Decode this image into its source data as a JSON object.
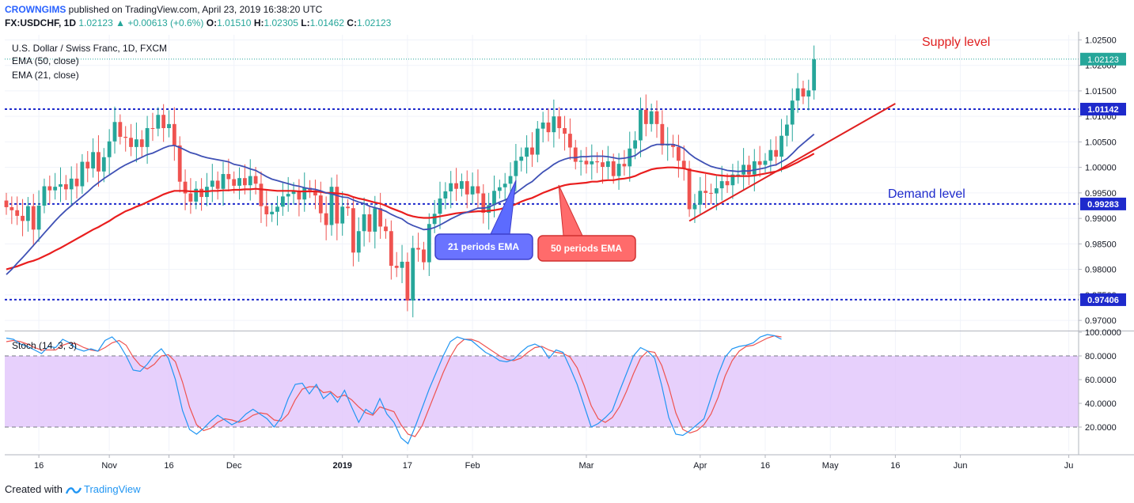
{
  "header": {
    "author": "CROWNGIMS",
    "published": "published on TradingView.com, April 23, 2019 16:38:20 UTC",
    "symbol": "FX:USDCHF, 1D",
    "last": "1.02123",
    "change": "+0.00613 (+0.6%)",
    "o_label": "O:",
    "o": "1.01510",
    "h_label": "H:",
    "h": "1.02305",
    "l_label": "L:",
    "l": "1.01462",
    "c_label": "C:",
    "c": "1.02123"
  },
  "legend": {
    "title": "U.S. Dollar / Swiss Franc, 1D, FXCM",
    "ema50": "EMA (50, close)",
    "ema21": "EMA (21, close)",
    "stoch": "Stoch (14, 3, 3)"
  },
  "annotations": {
    "supply": "Supply level",
    "demand": "Demand level",
    "ema21_callout": "21 periods EMA",
    "ema50_callout": "50 periods EMA"
  },
  "footer": {
    "created_with": "Created with",
    "brand": "TradingView"
  },
  "colors": {
    "up": "#26a69a",
    "down": "#ef5350",
    "ema21": "#3f51b5",
    "ema50": "#e91e1e",
    "level": "#1e2acc",
    "stoch_k": "#2196f3",
    "stoch_d": "#ef5350",
    "stoch_band": "#e1c4fb"
  },
  "chart_data": [
    {
      "type": "candlestick",
      "title": "U.S. Dollar / Swiss Franc, 1D, FXCM",
      "x_ticks": [
        "16",
        "Nov",
        "16",
        "Dec",
        "2019",
        "17",
        "Feb",
        "Mar",
        "Apr",
        "16",
        "May",
        "16",
        "Jun",
        "Ju"
      ],
      "ylim": [
        0.968,
        1.026
      ],
      "y_ticks": [
        "1.02500",
        "1.02000",
        "1.01500",
        "1.01000",
        "1.00500",
        "1.00000",
        "0.99500",
        "0.99000",
        "0.98500",
        "0.98000",
        "0.97500",
        "0.97000"
      ],
      "levels": [
        {
          "value": 1.01142,
          "label": "1.01142"
        },
        {
          "value": 0.99283,
          "label": "0.99283"
        },
        {
          "value": 0.97406,
          "label": "0.97406"
        }
      ],
      "current_price": {
        "value": 1.02123,
        "label": "1.02123"
      },
      "close": [
        0.9922,
        0.9916,
        0.9905,
        0.9895,
        0.9924,
        0.9878,
        0.9925,
        0.9963,
        0.9955,
        0.9962,
        0.9967,
        0.9957,
        0.9978,
        0.9963,
        1.0011,
        0.9998,
        1.003,
        0.9992,
        1.002,
        1.0051,
        1.0089,
        1.006,
        1.0058,
        1.004,
        1.0055,
        1.004,
        1.0077,
        1.0076,
        1.0103,
        1.0077,
        1.0085,
        1.0043,
        0.9972,
        0.9949,
        0.9933,
        0.9958,
        0.9942,
        0.9962,
        0.9974,
        0.9958,
        0.9987,
        0.9977,
        0.9964,
        0.9979,
        0.9965,
        0.9983,
        0.9968,
        0.9924,
        0.9908,
        0.9913,
        0.9923,
        0.9943,
        0.9948,
        0.9953,
        0.9937,
        0.996,
        0.9955,
        0.9945,
        0.991,
        0.9887,
        0.9962,
        0.989,
        0.9923,
        0.992,
        0.9833,
        0.9875,
        0.9908,
        0.9874,
        0.992,
        0.9884,
        0.9875,
        0.9807,
        0.9803,
        0.9815,
        0.9739,
        0.9842,
        0.9839,
        0.9814,
        0.9889,
        0.9909,
        0.9939,
        0.9953,
        0.9969,
        0.9958,
        0.9973,
        0.9947,
        0.9963,
        0.9949,
        0.9911,
        0.9926,
        0.9954,
        0.9961,
        0.9968,
        0.9983,
        1.0013,
        1.0021,
        1.0039,
        1.0025,
        1.0076,
        1.0088,
        1.0069,
        1.01,
        1.0077,
        1.0066,
        1.0039,
        1.0011,
        1.0013,
        1.0006,
        1.0012,
        1.001,
        1.0001,
        1.0012,
        0.9983,
        1.0007,
        1.0002,
        1.0037,
        1.0053,
        1.0113,
        1.0085,
        1.011,
        1.0085,
        1.0043,
        1.0046,
        1.004,
        1.0013,
        0.9998,
        0.9918,
        0.9927,
        0.9954,
        0.995,
        0.9949,
        0.9959,
        0.9973,
        0.9965,
        0.9986,
        0.9986,
        1.0005,
        0.9986,
        1.0012,
        1.0005,
        1.0013,
        1.0034,
        1.0021,
        1.0062,
        1.0084,
        1.0131,
        1.0155,
        1.0139,
        1.0151,
        1.0212
      ],
      "open": [
        0.9935,
        0.9922,
        0.9916,
        0.9905,
        0.9895,
        0.9924,
        0.9878,
        0.9925,
        0.9963,
        0.9955,
        0.9962,
        0.9967,
        0.9957,
        0.9978,
        0.9963,
        1.0011,
        0.9998,
        1.003,
        0.9992,
        1.002,
        1.0051,
        1.0089,
        1.006,
        1.0058,
        1.004,
        1.0055,
        1.004,
        1.0077,
        1.0076,
        1.0103,
        1.0077,
        1.0085,
        1.0043,
        0.9972,
        0.9949,
        0.9933,
        0.9958,
        0.9942,
        0.9962,
        0.9974,
        0.9958,
        0.9987,
        0.9977,
        0.9964,
        0.9979,
        0.9965,
        0.9983,
        0.9968,
        0.9924,
        0.9908,
        0.9913,
        0.9923,
        0.9943,
        0.9948,
        0.9953,
        0.9937,
        0.996,
        0.9955,
        0.9945,
        0.991,
        0.9887,
        0.9962,
        0.989,
        0.9923,
        0.992,
        0.9833,
        0.9875,
        0.9908,
        0.9874,
        0.992,
        0.9884,
        0.9875,
        0.9807,
        0.9803,
        0.9815,
        0.9739,
        0.9842,
        0.9839,
        0.9814,
        0.9889,
        0.9909,
        0.9939,
        0.9953,
        0.9969,
        0.9958,
        0.9973,
        0.9947,
        0.9963,
        0.9949,
        0.9911,
        0.9926,
        0.9954,
        0.9961,
        0.9968,
        0.9983,
        1.0013,
        1.0021,
        1.0039,
        1.0025,
        1.0076,
        1.0088,
        1.0069,
        1.01,
        1.0077,
        1.0066,
        1.0039,
        1.0011,
        1.0013,
        1.0006,
        1.0012,
        1.001,
        1.0001,
        1.0012,
        0.9983,
        1.0007,
        1.0002,
        1.0037,
        1.0053,
        1.0113,
        1.0085,
        1.011,
        1.0085,
        1.0043,
        1.0046,
        1.004,
        1.0013,
        0.9998,
        0.9918,
        0.9927,
        0.9954,
        0.995,
        0.9949,
        0.9959,
        0.9973,
        0.9965,
        0.9986,
        0.9986,
        1.0005,
        0.9986,
        1.0012,
        1.0005,
        1.0013,
        1.0034,
        1.0021,
        1.0062,
        1.0084,
        1.0131,
        1.0155,
        1.0139,
        1.0151
      ],
      "series": [
        {
          "name": "EMA (21, close)",
          "values": [
            0.979,
            0.98,
            0.9812,
            0.9823,
            0.9835,
            0.9847,
            0.9859,
            0.9871,
            0.9883,
            0.9895,
            0.9906,
            0.9916,
            0.9925,
            0.9934,
            0.9943,
            0.9952,
            0.9962,
            0.997,
            0.9978,
            0.9985,
            0.9992,
            0.9999,
            1.0005,
            1.001,
            1.0015,
            1.002,
            1.0025,
            1.0028,
            1.0033,
            1.0038,
            1.0042,
            1.0043,
            1.0039,
            1.0034,
            1.0029,
            1.0026,
            1.0022,
            1.0019,
            1.0017,
            1.0015,
            1.0013,
            1.0011,
            1.0006,
            1.0004,
            1.0001,
            0.9997,
            0.9994,
            0.9988,
            0.9982,
            0.9977,
            0.9974,
            0.9971,
            0.9968,
            0.9965,
            0.9963,
            0.996,
            0.9958,
            0.9957,
            0.9954,
            0.995,
            0.9948,
            0.9945,
            0.9942,
            0.9941,
            0.9936,
            0.9932,
            0.9929,
            0.9924,
            0.9921,
            0.9918,
            0.9914,
            0.9908,
            0.9903,
            0.9899,
            0.9891,
            0.9886,
            0.9882,
            0.9878,
            0.9879,
            0.9882,
            0.9887,
            0.9893,
            0.9899,
            0.9904,
            0.9909,
            0.9912,
            0.9916,
            0.992,
            0.992,
            0.9922,
            0.9927,
            0.9932,
            0.9936,
            0.9942,
            0.995,
            0.9958,
            0.9966,
            0.9972,
            0.9982,
            0.9991,
            0.9998,
            1.0006,
            1.0012,
            1.0016,
            1.0019,
            1.0019,
            1.0021,
            1.0021,
            1.0022,
            1.0022,
            1.0022,
            1.0021,
            1.0019,
            1.0017,
            1.0018,
            1.002,
            1.0023,
            1.0031,
            1.0036,
            1.0042,
            1.0045,
            1.0045,
            1.0045,
            1.0045,
            1.0042,
            1.0037,
            1.0027,
            1.0019,
            1.0013,
            1.0007,
            1.0002,
            0.9999,
            0.9997,
            0.9994,
            0.9993,
            0.9992,
            0.9993,
            0.9993,
            0.9995,
            0.9997,
            0.9999,
            1.0003,
            1.0005,
            1.0011,
            1.0017,
            1.0027,
            1.0038,
            1.0047,
            1.0056,
            1.0065
          ]
        },
        {
          "name": "EMA (50, close)",
          "values": [
            0.98,
            0.9803,
            0.9806,
            0.981,
            0.9814,
            0.9817,
            0.9821,
            0.9826,
            0.9831,
            0.9837,
            0.9842,
            0.9848,
            0.9854,
            0.986,
            0.9866,
            0.9872,
            0.9878,
            0.9883,
            0.9889,
            0.9895,
            0.9902,
            0.9908,
            0.9914,
            0.9918,
            0.9923,
            0.9927,
            0.9932,
            0.9937,
            0.9942,
            0.9947,
            0.9951,
            0.9954,
            0.9954,
            0.9954,
            0.9953,
            0.9953,
            0.9953,
            0.9953,
            0.9954,
            0.9954,
            0.9955,
            0.9955,
            0.9956,
            0.9956,
            0.9957,
            0.9957,
            0.9958,
            0.9957,
            0.9956,
            0.9955,
            0.9954,
            0.9954,
            0.9954,
            0.9954,
            0.9953,
            0.9953,
            0.9953,
            0.9953,
            0.9952,
            0.995,
            0.995,
            0.9949,
            0.9948,
            0.9946,
            0.9942,
            0.9939,
            0.9937,
            0.9934,
            0.9931,
            0.9929,
            0.9925,
            0.992,
            0.9916,
            0.9912,
            0.9907,
            0.9904,
            0.9902,
            0.9901,
            0.9901,
            0.9902,
            0.9904,
            0.9906,
            0.9908,
            0.991,
            0.9911,
            0.9912,
            0.9913,
            0.9914,
            0.9914,
            0.9915,
            0.9916,
            0.9918,
            0.9921,
            0.9924,
            0.9928,
            0.9933,
            0.9937,
            0.994,
            0.9945,
            0.995,
            0.9954,
            0.9958,
            0.9962,
            0.9965,
            0.9967,
            0.9968,
            0.9969,
            0.997,
            0.9972,
            0.9972,
            0.9974,
            0.9975,
            0.9975,
            0.9977,
            0.9978,
            0.998,
            0.9983,
            0.9988,
            0.9992,
            0.9996,
            0.9998,
            0.9999,
            1.0,
            1.0,
            0.9999,
            0.9998,
            0.9995,
            0.9993,
            0.9991,
            0.9989,
            0.9987,
            0.9985,
            0.9984,
            0.9983,
            0.9983,
            0.9983,
            0.9983,
            0.9983,
            0.9984,
            0.9986,
            0.9988,
            0.999,
            0.9992,
            0.9996,
            1.0,
            1.0005,
            1.001,
            1.0016,
            1.0021,
            1.0027
          ]
        }
      ],
      "trendline": [
        {
          "x": 126,
          "y": 0.9895
        },
        {
          "x": 164,
          "y": 1.0125
        }
      ]
    },
    {
      "type": "line",
      "title": "Stoch (14, 3, 3)",
      "ylim": [
        0,
        100
      ],
      "y_ticks": [
        "100.0000",
        "80.0000",
        "60.0000",
        "40.0000",
        "20.0000"
      ],
      "bands": [
        20,
        80
      ],
      "series": [
        {
          "name": "%K",
          "values": [
            95,
            94,
            90,
            88,
            85,
            82,
            88,
            87,
            94,
            91,
            86,
            84,
            86,
            84,
            93,
            96,
            90,
            80,
            68,
            67,
            73,
            81,
            86,
            78,
            60,
            34,
            18,
            14,
            19,
            25,
            30,
            26,
            22,
            25,
            31,
            35,
            31,
            27,
            20,
            28,
            44,
            56,
            57,
            48,
            56,
            44,
            49,
            41,
            51,
            37,
            24,
            35,
            31,
            44,
            31,
            24,
            11,
            6,
            20,
            36,
            52,
            66,
            80,
            92,
            96,
            94,
            93,
            88,
            83,
            80,
            76,
            75,
            77,
            83,
            88,
            90,
            87,
            78,
            85,
            83,
            70,
            56,
            38,
            20,
            23,
            28,
            34,
            50,
            65,
            80,
            87,
            84,
            78,
            55,
            28,
            14,
            13,
            17,
            22,
            27,
            45,
            64,
            79,
            86,
            88,
            89,
            91,
            96,
            98,
            97,
            94
          ]
        },
        {
          "name": "%D",
          "values": [
            92,
            93,
            92,
            90,
            87,
            85,
            85,
            85,
            89,
            91,
            90,
            87,
            85,
            84,
            87,
            91,
            93,
            89,
            79,
            72,
            69,
            73,
            80,
            81,
            75,
            58,
            37,
            22,
            17,
            19,
            24,
            27,
            26,
            24,
            26,
            30,
            32,
            31,
            26,
            25,
            31,
            43,
            52,
            54,
            54,
            49,
            50,
            45,
            47,
            43,
            37,
            32,
            30,
            37,
            35,
            33,
            22,
            14,
            12,
            21,
            36,
            51,
            66,
            79,
            89,
            94,
            94,
            92,
            88,
            84,
            80,
            77,
            76,
            78,
            83,
            87,
            88,
            85,
            83,
            82,
            79,
            70,
            55,
            38,
            27,
            24,
            28,
            37,
            50,
            65,
            78,
            84,
            83,
            72,
            54,
            32,
            18,
            15,
            17,
            22,
            31,
            45,
            63,
            76,
            84,
            88,
            89,
            92,
            95,
            97,
            96
          ]
        }
      ]
    }
  ]
}
